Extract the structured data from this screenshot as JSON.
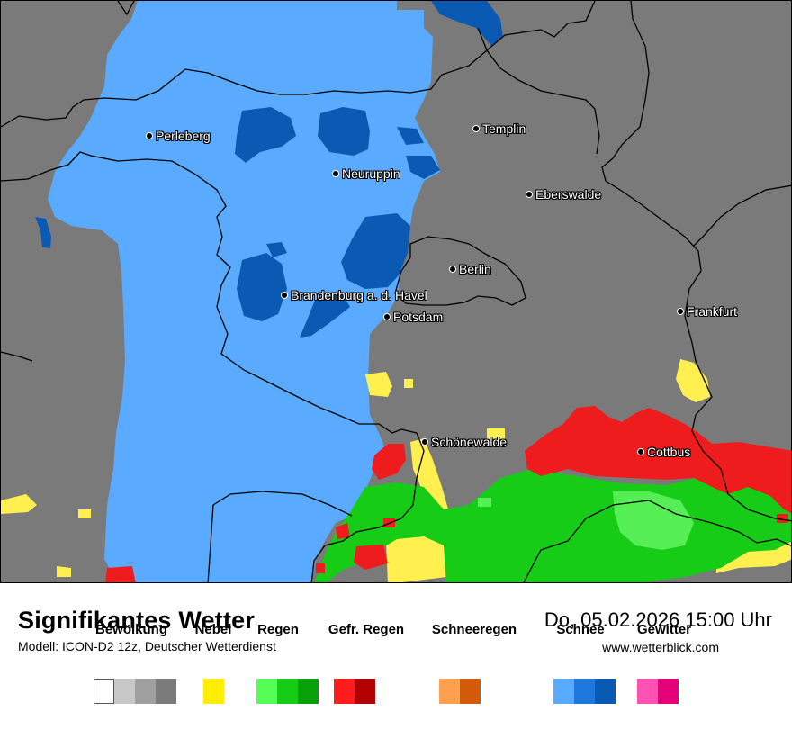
{
  "map": {
    "cities": [
      {
        "name": "Perleberg",
        "icon": "city-dot-icon"
      },
      {
        "name": "Templin",
        "icon": "city-dot-icon"
      },
      {
        "name": "Neuruppin",
        "icon": "city-dot-icon"
      },
      {
        "name": "Eberswalde",
        "icon": "city-dot-icon"
      },
      {
        "name": "Berlin",
        "icon": "city-dot-icon"
      },
      {
        "name": "Brandenburg a. d. Havel",
        "icon": "city-dot-icon"
      },
      {
        "name": "Potsdam",
        "icon": "city-dot-icon"
      },
      {
        "name": "Frankfurt",
        "icon": "city-dot-icon"
      },
      {
        "name": "Schönewalde",
        "icon": "city-dot-icon"
      },
      {
        "name": "Cottbus",
        "icon": "city-dot-icon"
      }
    ],
    "colors": {
      "background": "#7a7a7a",
      "snow_light": "#5aabff",
      "snow_dark": "#0a5ab4",
      "fog": "#fff050",
      "rain_light": "#55ee55",
      "rain": "#16cc16",
      "freezing_rain": "#ee1c1c",
      "border": "#000000"
    }
  },
  "footer": {
    "title": "Signifikantes Wetter",
    "model": "Modell: ICON-D2 12z, Deutscher Wetterdienst",
    "datetime": "Do, 05.02.2026 15:00 Uhr",
    "website": "www.wetterblick.com"
  },
  "legend": [
    {
      "label": "Bewölkung",
      "colors": [
        "#ffffff",
        "#c8c8c8",
        "#a0a0a0",
        "#7a7a7a"
      ]
    },
    {
      "label": "Nebel",
      "colors": [
        "#ffee00"
      ]
    },
    {
      "label": "Regen",
      "colors": [
        "#55ff55",
        "#16cc16",
        "#0aa00a"
      ]
    },
    {
      "label": "Gefr. Regen",
      "colors": [
        "#ff1c1c",
        "#b40000"
      ]
    },
    {
      "label": "Schneeregen",
      "colors": [
        "#ffa050",
        "#d25a0a"
      ]
    },
    {
      "label": "Schnee",
      "colors": [
        "#5aabff",
        "#1e78dc",
        "#0a5ab4"
      ]
    },
    {
      "label": "Gewitter",
      "colors": [
        "#ff50b4",
        "#e6007a"
      ]
    }
  ]
}
